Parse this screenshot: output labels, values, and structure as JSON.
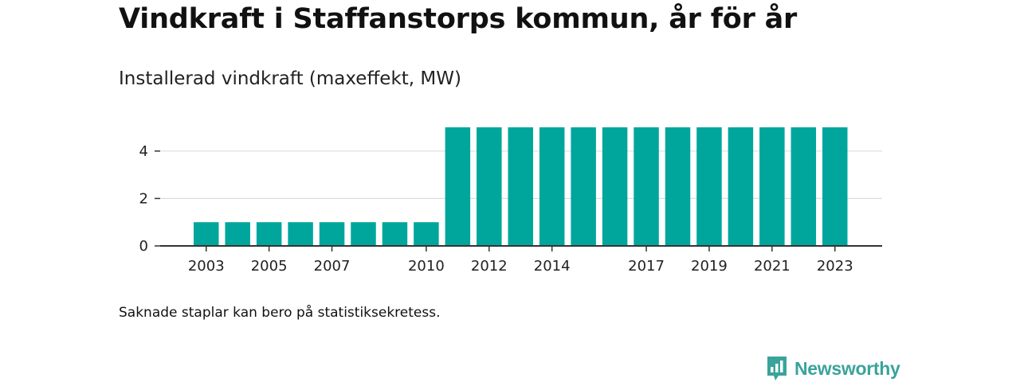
{
  "title": "Vindkraft i Staffanstorps kommun, år för år",
  "subtitle": "Installerad vindkraft (maxeffekt, MW)",
  "footnote": "Saknade staplar kan bero på statistiksekretess.",
  "brand": {
    "name": "Newsworthy",
    "icon": "newsworthy-logo-icon",
    "color": "#3aa39b"
  },
  "colors": {
    "bar": "#00a69c",
    "grid": "#dddddd",
    "axis": "#333333",
    "text": "#222222"
  },
  "chart_data": {
    "type": "bar",
    "x": [
      2003,
      2004,
      2005,
      2006,
      2007,
      2008,
      2009,
      2010,
      2011,
      2012,
      2013,
      2014,
      2015,
      2016,
      2017,
      2018,
      2019,
      2020,
      2021,
      2022,
      2023
    ],
    "values": [
      1,
      1,
      1,
      1,
      1,
      1,
      1,
      1,
      5,
      5,
      5,
      5,
      5,
      5,
      5,
      5,
      5,
      5,
      5,
      5,
      5
    ],
    "x_tick_labels": [
      "2003",
      "2005",
      "2007",
      "2010",
      "2012",
      "2014",
      "2017",
      "2019",
      "2021",
      "2023"
    ],
    "y_ticks": [
      0,
      2,
      4
    ],
    "ylim": [
      0,
      5
    ],
    "grid": true,
    "legend": "none",
    "xlabel": "",
    "ylabel": ""
  }
}
